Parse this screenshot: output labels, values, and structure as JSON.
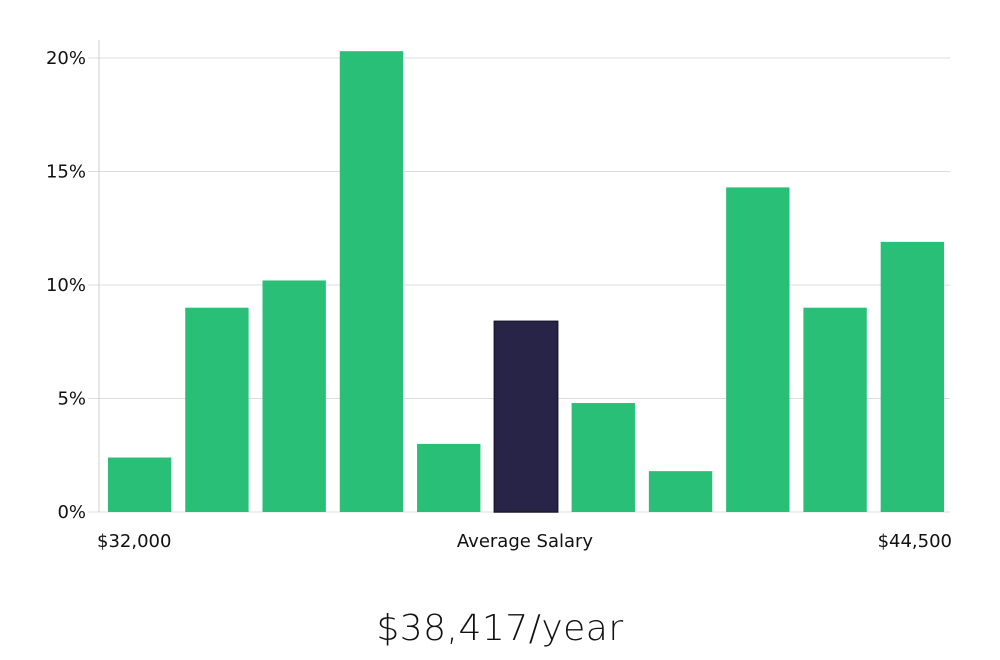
{
  "chart_data": {
    "type": "bar",
    "title": "",
    "xlabel": "Average Salary",
    "ylabel": "",
    "x_range_labels": {
      "min": "$32,000",
      "max": "$44,500"
    },
    "ylim": [
      0,
      20
    ],
    "yticks": [
      0,
      5,
      10,
      15,
      20
    ],
    "ytick_labels": [
      "0%",
      "5%",
      "10%",
      "15%",
      "20%"
    ],
    "values": [
      2.4,
      9.0,
      10.2,
      20.3,
      3.0,
      8.4,
      4.8,
      1.8,
      14.3,
      9.0,
      11.9
    ],
    "highlight_index": 5,
    "colors": {
      "bar": "#2abf76",
      "highlight": "#272447"
    },
    "grid": true
  },
  "summary": {
    "salary": "$38,417/year"
  }
}
